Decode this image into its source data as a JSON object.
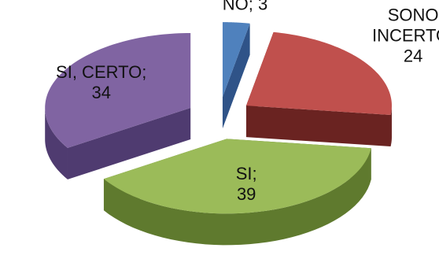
{
  "chart_data": {
    "type": "pie",
    "style": "3d-exploded",
    "categories": [
      "NO",
      "SONO INCERTO",
      "SI",
      "SI, CERTO"
    ],
    "values": [
      3,
      24,
      39,
      34
    ],
    "labels": [
      {
        "category_lines": [
          "NO;"
        ],
        "value": "3"
      },
      {
        "category_lines": [
          "SONO",
          "INCERTO;"
        ],
        "value": "24"
      },
      {
        "category_lines": [
          "SI;"
        ],
        "value": "39"
      },
      {
        "category_lines": [
          "SI, CERTO;"
        ],
        "value": "34"
      }
    ],
    "colors": {
      "NO": "#4f81bd",
      "SONO INCERTO": "#c0504d",
      "SI": "#9bbb59",
      "SI, CERTO": "#8064a2"
    },
    "side_colors": {
      "NO": "#2f5388",
      "SONO INCERTO": "#6a2321",
      "SI": "#5f7a2e",
      "SI, CERTO": "#4f3b70"
    },
    "legend": "none",
    "title": ""
  }
}
